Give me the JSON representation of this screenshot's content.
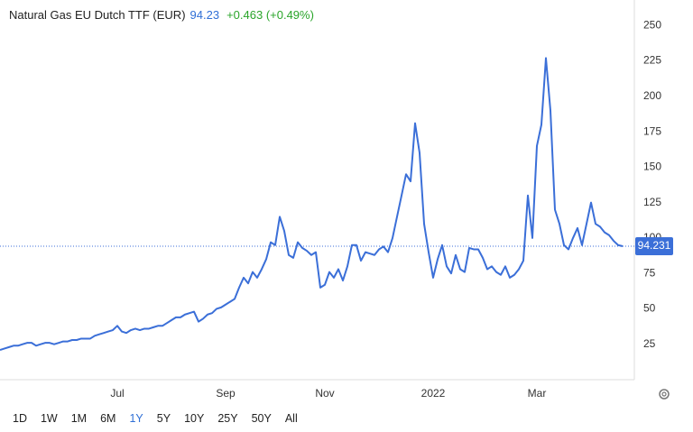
{
  "header": {
    "title": "Natural Gas EU Dutch TTF (EUR)",
    "price": "94.23",
    "change": "+0.463 (+0.49%)"
  },
  "ranges": [
    "1D",
    "1W",
    "1M",
    "6M",
    "1Y",
    "5Y",
    "10Y",
    "25Y",
    "50Y",
    "All"
  ],
  "active_range_index": 4,
  "chart_data": {
    "type": "line",
    "color": "#3b6fd8",
    "grid": false,
    "last_value": 94.231,
    "ylim": [
      0,
      268
    ],
    "yticks": [
      25,
      50,
      75,
      100,
      125,
      150,
      175,
      200,
      225,
      250
    ],
    "categories": [
      null,
      null,
      null,
      null,
      null,
      null,
      null,
      null,
      null,
      null,
      null,
      null,
      null,
      null,
      null,
      null,
      null,
      null,
      null,
      null,
      null,
      null,
      null,
      null,
      null,
      null,
      "Jul",
      null,
      null,
      null,
      null,
      null,
      null,
      null,
      null,
      null,
      null,
      null,
      null,
      null,
      null,
      null,
      null,
      null,
      null,
      null,
      null,
      null,
      null,
      null,
      "Sep",
      null,
      null,
      null,
      null,
      null,
      null,
      null,
      null,
      null,
      null,
      null,
      null,
      null,
      null,
      null,
      null,
      null,
      null,
      null,
      null,
      null,
      "Nov",
      null,
      null,
      null,
      null,
      null,
      null,
      null,
      null,
      null,
      null,
      null,
      null,
      null,
      null,
      null,
      null,
      null,
      null,
      null,
      null,
      null,
      null,
      null,
      "2022",
      null,
      null,
      null,
      null,
      null,
      null,
      null,
      null,
      null,
      null,
      null,
      null,
      null,
      null,
      null,
      null,
      null,
      null,
      null,
      null,
      null,
      null,
      "Mar",
      null,
      null,
      null,
      null,
      null,
      null,
      null,
      null,
      null,
      null,
      null,
      null,
      null,
      null,
      null,
      null,
      null,
      null,
      null
    ],
    "values": [
      21,
      22,
      23,
      24,
      24,
      25,
      26,
      26,
      24,
      25,
      26,
      26,
      25,
      26,
      27,
      27,
      28,
      28,
      29,
      29,
      29,
      31,
      32,
      33,
      34,
      35,
      38,
      34,
      33,
      35,
      36,
      35,
      36,
      36,
      37,
      38,
      38,
      40,
      42,
      44,
      44,
      46,
      47,
      48,
      41,
      43,
      46,
      47,
      50,
      51,
      53,
      55,
      57,
      65,
      72,
      68,
      76,
      72,
      78,
      85,
      97,
      95,
      115,
      105,
      88,
      86,
      97,
      93,
      91,
      88,
      90,
      65,
      67,
      76,
      72,
      78,
      70,
      80,
      95,
      95,
      84,
      90,
      89,
      88,
      92,
      94,
      90,
      100,
      115,
      130,
      145,
      140,
      181,
      160,
      110,
      90,
      72,
      85,
      95,
      80,
      75,
      88,
      78,
      76,
      93,
      92,
      92,
      86,
      78,
      80,
      76,
      74,
      80,
      72,
      74,
      78,
      84,
      130,
      100,
      165,
      180,
      227,
      190,
      120,
      110,
      95,
      92,
      100,
      107,
      95,
      110,
      125,
      110,
      108,
      104,
      102,
      98,
      95,
      94.23
    ]
  }
}
